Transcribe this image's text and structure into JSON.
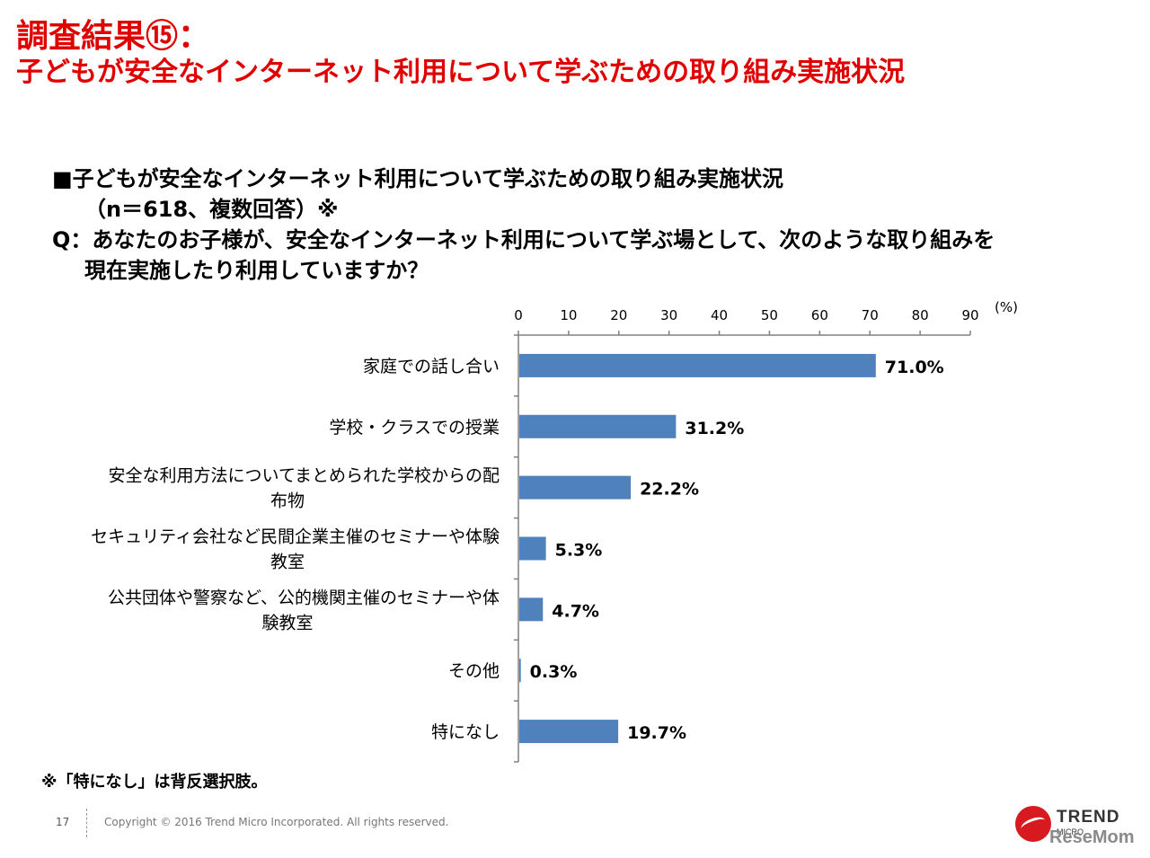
{
  "slide": {
    "title_line1": "調査結果⑮：",
    "title_line2": "子どもが安全なインターネット利用について学ぶための取り組み実施状況"
  },
  "subtitle": {
    "line1": "■子どもが安全なインターネット利用について学ぶための取り組み実施状況",
    "line2": "（n＝618、複数回答）※",
    "line3": "Q：あなたのお子様が、安全なインターネット利用について学ぶ場として、次のような取り組みを",
    "line4": "現在実施したり利用していますか？"
  },
  "chart_data": {
    "type": "bar",
    "orientation": "horizontal",
    "categories": [
      [
        "家庭での話し合い"
      ],
      [
        "学校・クラスでの授業"
      ],
      [
        "安全な利用方法についてまとめられた学校からの配",
        "布物"
      ],
      [
        "セキュリティ会社など民間企業主催のセミナーや体験",
        "教室"
      ],
      [
        "公共団体や警察など、公的機関主催のセミナーや体",
        "験教室"
      ],
      [
        "その他"
      ],
      [
        "特になし"
      ]
    ],
    "values": [
      71.0,
      31.2,
      22.2,
      5.3,
      4.7,
      0.3,
      19.7
    ],
    "value_labels": [
      "71.0%",
      "31.2%",
      "22.2%",
      "5.3%",
      "4.7%",
      "0.3%",
      "19.7%"
    ],
    "xlim": [
      0,
      90
    ],
    "xticks": [
      0,
      10,
      20,
      30,
      40,
      50,
      60,
      70,
      80,
      90
    ],
    "unit_label": "(%)",
    "axis_position": "top",
    "bar_color": "#4f81bd",
    "grid": false
  },
  "footnote": "※「特になし」は背反選択肢。",
  "footer": {
    "page_number": "17",
    "copyright": "Copyright © 2016 Trend Micro Incorporated. All rights reserved."
  },
  "logo": {
    "text": "TREND",
    "sub": "MICRO"
  },
  "watermark": "ReseMom"
}
